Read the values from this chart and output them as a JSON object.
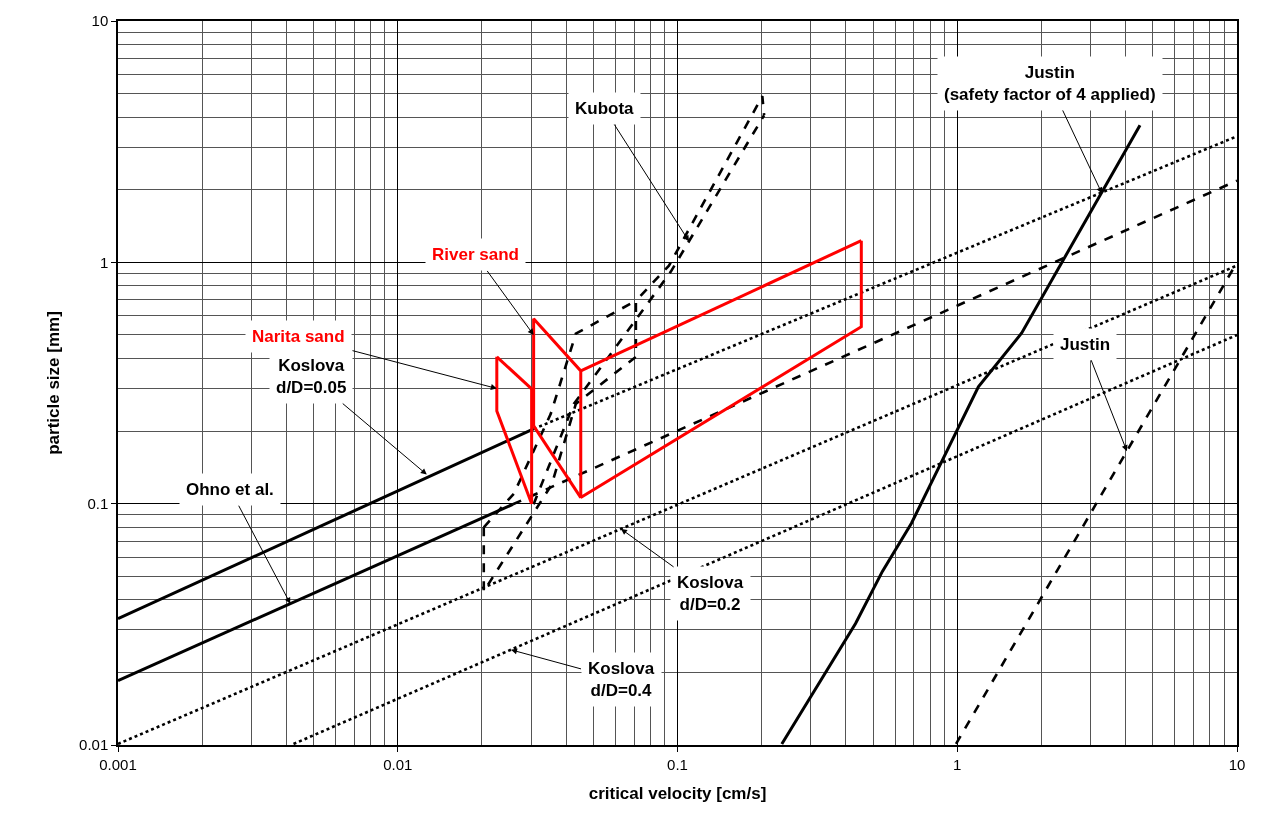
{
  "chart_data": {
    "type": "line",
    "xlabel": "critical velocity [cm/s]",
    "ylabel": "particle size [mm]",
    "log": "xy",
    "grid": true,
    "xlim": [
      0.001,
      10
    ],
    "xticks": [
      0.001,
      0.01,
      0.1,
      1,
      10
    ],
    "ylim": [
      0.01,
      10
    ],
    "yticks": [
      0.01,
      0.1,
      1,
      10
    ],
    "series": [
      {
        "color": "#000000",
        "line_style": "solid",
        "x": [
          0.001,
          0.0306
        ],
        "values": [
          0.0334,
          0.204
        ]
      },
      {
        "color": "#000000",
        "line_style": "dotted",
        "x": [
          0.0306,
          10
        ],
        "values": [
          0.204,
          3.33
        ]
      },
      {
        "color": "#000000",
        "line_style": "solid",
        "x": [
          0.001,
          0.0258
        ],
        "values": [
          0.0185,
          0.0994
        ]
      },
      {
        "color": "#000000",
        "line_style": "dashed",
        "x": [
          0.0258,
          10
        ],
        "values": [
          0.0994,
          2.18
        ]
      },
      {
        "color": "#000000",
        "line_style": "dotted",
        "x": [
          0.001,
          10
        ],
        "values": [
          0.0101,
          0.97
        ]
      },
      {
        "color": "#000000",
        "line_style": "dotted",
        "x": [
          0.00424,
          10
        ],
        "values": [
          0.0101,
          0.5
        ]
      },
      {
        "color": "#000000",
        "line_style": "solid",
        "x": [
          0.236,
          0.433,
          0.54,
          0.686,
          1.19,
          1.7,
          4.5
        ],
        "values": [
          0.0101,
          0.0319,
          0.0524,
          0.083,
          0.305,
          0.51,
          3.7
        ]
      },
      {
        "color": "#000000",
        "line_style": "dashed",
        "x": [
          0.99,
          10
        ],
        "values": [
          0.0101,
          1.0
        ]
      },
      {
        "color": "#000000",
        "line_style": "dashed",
        "x": [
          0.0203,
          0.0203,
          0.0355,
          0.0433,
          0.071,
          0.071,
          0.0932,
          0.201,
          0.204,
          null,
          0.0203,
          0.026,
          0.0352,
          0.0433,
          0.071,
          null,
          0.0306,
          0.0426,
          0.0578,
          0.0947,
          0.204
        ],
        "values": [
          0.0798,
          0.0433,
          0.12,
          0.259,
          0.406,
          0.693,
          0.969,
          4.88,
          4.07,
          null,
          0.0798,
          0.11,
          0.235,
          0.506,
          0.693,
          null,
          0.0995,
          0.259,
          0.418,
          0.915,
          4.07
        ]
      },
      {
        "color": "#ff0000",
        "line_style": "solid",
        "x": [
          0.0226,
          0.0226,
          0.0301,
          0.0301,
          null,
          0.0226,
          0.0301
        ],
        "values": [
          0.406,
          0.242,
          0.1,
          0.299,
          null,
          0.406,
          0.299
        ]
      },
      {
        "color": "#ff0000",
        "line_style": "solid",
        "x": [
          0.0306,
          0.0306,
          0.0451,
          0.0451,
          0.454,
          0.454,
          null,
          0.0306,
          0.0451,
          null,
          0.0451,
          0.454
        ],
        "values": [
          0.21,
          0.584,
          0.355,
          0.106,
          0.541,
          1.23,
          null,
          0.21,
          0.106,
          null,
          0.355,
          1.23
        ]
      }
    ],
    "annotations": [
      {
        "text": "Kubota",
        "x": 0.11,
        "y": 1.22
      },
      {
        "text": "River sand",
        "x": 0.0306,
        "y": 0.5
      },
      {
        "text": "Narita sand",
        "x": 0.0226,
        "y": 0.3
      },
      {
        "text": "Koslova\nd/D=0.05",
        "x": 0.0127,
        "y": 0.132
      },
      {
        "text": "Ohno et al.",
        "x": 0.00413,
        "y": 0.0385
      },
      {
        "text": "Koslova\nd/D=0.2",
        "x": 0.0628,
        "y": 0.0786
      },
      {
        "text": "Koslova\nd/D=0.4",
        "x": 0.0254,
        "y": 0.0248
      },
      {
        "text": "Justin\n(safety factor of 4 applied)",
        "x": 3.29,
        "y": 1.93
      },
      {
        "text": "Justin",
        "x": 4.04,
        "y": 0.165
      }
    ]
  }
}
